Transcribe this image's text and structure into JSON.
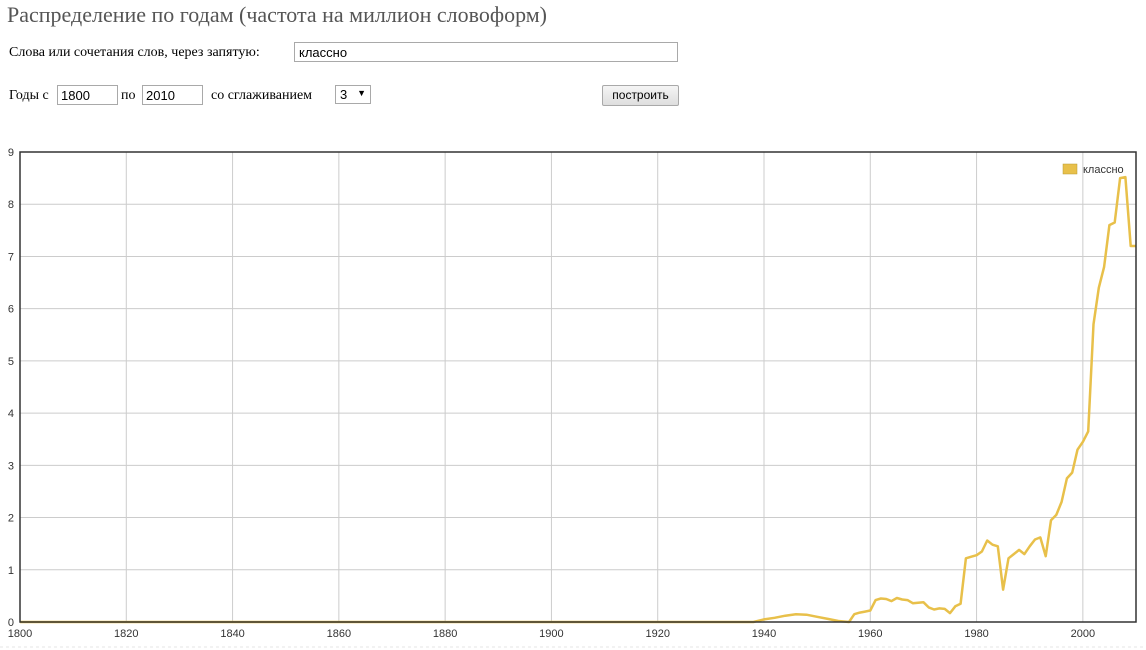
{
  "page": {
    "title": "Распределение по годам (частота на миллион словоформ)"
  },
  "form": {
    "words_label": "Слова или сочетания слов, через запятую:",
    "words_value": "классно",
    "years_from_label": "Годы с",
    "year_from": "1800",
    "years_to_label": "по",
    "year_to": "2010",
    "smoothing_label": "со сглаживанием",
    "smoothing_value": "3",
    "build_button": "построить"
  },
  "colors": {
    "series": "#e8c04a",
    "grid": "#cccccc",
    "axis": "#333333"
  },
  "chart_data": {
    "type": "line",
    "title": "",
    "xlabel": "",
    "ylabel": "",
    "xlim": [
      1800,
      2010
    ],
    "ylim": [
      0,
      9
    ],
    "x_ticks": [
      "1800",
      "1820",
      "1840",
      "1860",
      "1880",
      "1900",
      "1920",
      "1940",
      "1960",
      "1980",
      "2000"
    ],
    "y_ticks": [
      "0",
      "1",
      "2",
      "3",
      "4",
      "5",
      "6",
      "7",
      "8",
      "9"
    ],
    "legend": "top-right",
    "series": [
      {
        "name": "классно",
        "x": [
          1800,
          1938,
          1940,
          1942,
          1944,
          1946,
          1948,
          1950,
          1952,
          1954,
          1956,
          1957,
          1958,
          1959,
          1960,
          1961,
          1962,
          1963,
          1964,
          1965,
          1966,
          1967,
          1968,
          1969,
          1970,
          1971,
          1972,
          1973,
          1974,
          1975,
          1976,
          1977,
          1978,
          1979,
          1980,
          1981,
          1982,
          1983,
          1984,
          1985,
          1986,
          1987,
          1988,
          1989,
          1990,
          1991,
          1992,
          1993,
          1994,
          1995,
          1996,
          1997,
          1998,
          1999,
          2000,
          2001,
          2002,
          2003,
          2004,
          2005,
          2006,
          2007,
          2008,
          2009,
          2010
        ],
        "values": [
          0,
          0,
          0.05,
          0.08,
          0.12,
          0.15,
          0.14,
          0.1,
          0.06,
          0.02,
          0.0,
          0.15,
          0.18,
          0.2,
          0.22,
          0.42,
          0.45,
          0.44,
          0.4,
          0.46,
          0.43,
          0.42,
          0.36,
          0.37,
          0.38,
          0.28,
          0.24,
          0.26,
          0.25,
          0.17,
          0.3,
          0.35,
          1.22,
          1.25,
          1.28,
          1.35,
          1.56,
          1.48,
          1.45,
          0.62,
          1.22,
          1.3,
          1.38,
          1.3,
          1.45,
          1.58,
          1.62,
          1.26,
          1.95,
          2.05,
          2.3,
          2.75,
          2.86,
          3.3,
          3.45,
          3.65,
          5.7,
          6.4,
          6.8,
          7.6,
          7.65,
          8.5,
          8.52,
          7.2,
          7.2
        ]
      }
    ]
  }
}
